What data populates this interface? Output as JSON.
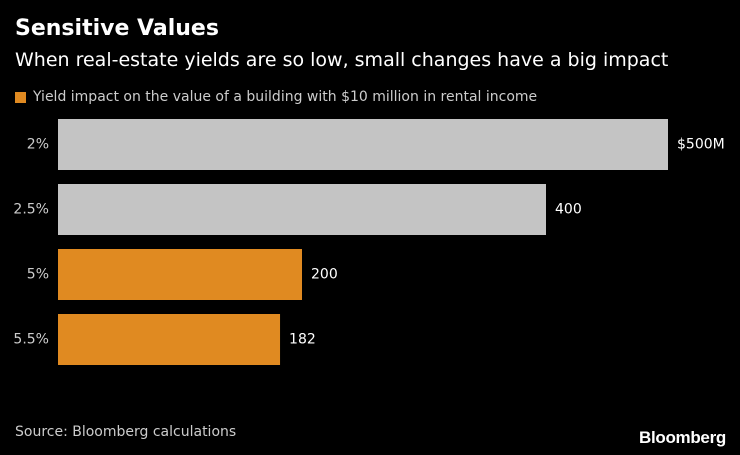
{
  "header": {
    "title": "Sensitive Values",
    "subtitle": "When real-estate yields are so low, small changes have a big impact"
  },
  "legend": {
    "label": "Yield impact on the value of a building with $10 million in rental income",
    "color": "#E08A21"
  },
  "chart_data": {
    "type": "bar",
    "orientation": "horizontal",
    "title": "Sensitive Values",
    "subtitle": "When real-estate yields are so low, small changes have a big impact",
    "series_name": "Yield impact on the value of a building with $10 million in rental income",
    "categories": [
      "2%",
      "2.5%",
      "5%",
      "5.5%"
    ],
    "values": [
      500,
      400,
      200,
      182
    ],
    "value_labels": [
      "$500M",
      "400",
      "200",
      "182"
    ],
    "bar_colors": [
      "#C4C4C4",
      "#C4C4C4",
      "#E08A21",
      "#E08A21"
    ],
    "xlim": [
      0,
      500
    ],
    "xlabel": "",
    "ylabel": "",
    "grid": false
  },
  "footer": {
    "source": "Source: Bloomberg calculations",
    "brand": "Bloomberg"
  }
}
